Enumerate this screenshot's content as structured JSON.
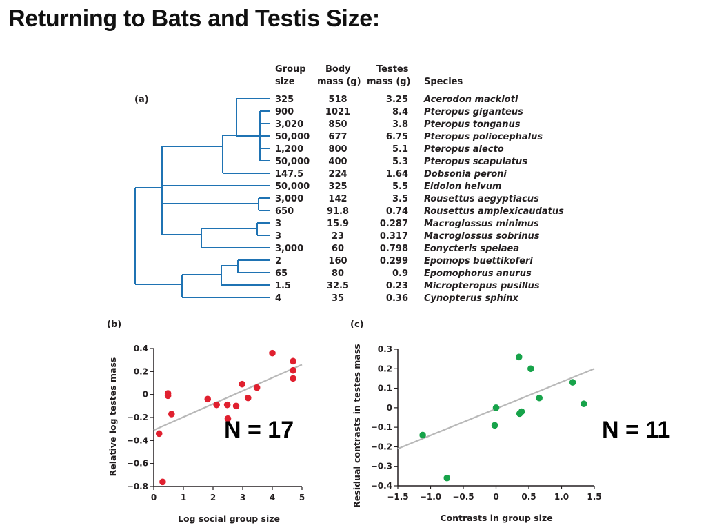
{
  "slide": {
    "title": "Returning to Bats and Testis Size:"
  },
  "table": {
    "panel_label": "(a)",
    "headers": {
      "group": [
        "Group",
        "size"
      ],
      "body": [
        "Body",
        "mass (g)"
      ],
      "testes": [
        "Testes",
        "mass (g)"
      ],
      "species": "Species"
    },
    "rows": [
      {
        "group": "325",
        "body": "518",
        "testes": "3.25",
        "species": "Acerodon mackloti"
      },
      {
        "group": "900",
        "body": "1021",
        "testes": "8.4",
        "species": "Pteropus giganteus"
      },
      {
        "group": "3,020",
        "body": "850",
        "testes": "3.8",
        "species": "Pteropus tonganus"
      },
      {
        "group": "50,000",
        "body": "677",
        "testes": "6.75",
        "species": "Pteropus poliocephalus"
      },
      {
        "group": "1,200",
        "body": "800",
        "testes": "5.1",
        "species": "Pteropus alecto"
      },
      {
        "group": "50,000",
        "body": "400",
        "testes": "5.3",
        "species": "Pteropus scapulatus"
      },
      {
        "group": "147.5",
        "body": "224",
        "testes": "1.64",
        "species": "Dobsonia peroni"
      },
      {
        "group": "50,000",
        "body": "325",
        "testes": "5.5",
        "species": "Eidolon helvum"
      },
      {
        "group": "3,000",
        "body": "142",
        "testes": "3.5",
        "species": "Rousettus aegyptiacus"
      },
      {
        "group": "650",
        "body": "91.8",
        "testes": "0.74",
        "species": "Rousettus amplexicaudatus"
      },
      {
        "group": "3",
        "body": "15.9",
        "testes": "0.287",
        "species": "Macroglossus minimus"
      },
      {
        "group": "3",
        "body": "23",
        "testes": "0.317",
        "species": "Macroglossus sobrinus"
      },
      {
        "group": "3,000",
        "body": "60",
        "testes": "0.798",
        "species": "Eonycteris spelaea"
      },
      {
        "group": "2",
        "body": "160",
        "testes": "0.299",
        "species": "Epomops buettikoferi"
      },
      {
        "group": "65",
        "body": "80",
        "testes": "0.9",
        "species": "Epomophorus anurus"
      },
      {
        "group": "1.5",
        "body": "32.5",
        "testes": "0.23",
        "species": "Micropteropus pusillus"
      },
      {
        "group": "4",
        "body": "35",
        "testes": "0.36",
        "species": "Cynopterus sphinx"
      }
    ]
  },
  "colors": {
    "tree": "#1f73b3",
    "red_points": "#e0202f",
    "green_points": "#17a34a",
    "fit_line": "#b8b8b8",
    "text": "#231f20"
  },
  "chart_data": [
    {
      "type": "scatter",
      "panel_label": "(b)",
      "annotation": "N = 17",
      "xlabel": "Log social group size",
      "ylabel": "Relative log testes mass",
      "xlim": [
        0,
        5
      ],
      "ylim": [
        -0.8,
        0.4
      ],
      "xticks": [
        0,
        1,
        2,
        3,
        4,
        5
      ],
      "xtick_labels": [
        "0",
        "1",
        "2",
        "3",
        "4",
        "5"
      ],
      "yticks": [
        0.4,
        0.2,
        0,
        -0.2,
        -0.4,
        -0.6,
        -0.8
      ],
      "ytick_labels": [
        "0.4",
        "0.2",
        "0",
        "−0.2",
        "−0.4",
        "−0.6",
        "−0.8"
      ],
      "point_color": "#e0202f",
      "points": [
        [
          0.18,
          -0.34
        ],
        [
          0.3,
          -0.76
        ],
        [
          0.48,
          0.01
        ],
        [
          0.48,
          -0.01
        ],
        [
          0.6,
          -0.17
        ],
        [
          1.82,
          -0.04
        ],
        [
          2.12,
          -0.09
        ],
        [
          2.48,
          -0.09
        ],
        [
          2.5,
          -0.21
        ],
        [
          2.78,
          -0.1
        ],
        [
          2.98,
          0.09
        ],
        [
          3.18,
          -0.03
        ],
        [
          3.48,
          0.06
        ],
        [
          4.0,
          0.36
        ],
        [
          4.7,
          0.29
        ],
        [
          4.7,
          0.21
        ],
        [
          4.7,
          0.14
        ]
      ],
      "fit_line": [
        [
          0.0,
          -0.31
        ],
        [
          5.0,
          0.26
        ]
      ]
    },
    {
      "type": "scatter",
      "panel_label": "(c)",
      "annotation": "N = 11",
      "xlabel": "Contrasts in group size",
      "ylabel": "Residual contrasts in testes mass",
      "xlim": [
        -1.5,
        1.5
      ],
      "ylim": [
        -0.4,
        0.3
      ],
      "xticks": [
        -1.5,
        -1.0,
        -0.5,
        0,
        0.5,
        1.0,
        1.5
      ],
      "xtick_labels": [
        "−1.5",
        "−1.0",
        "−0.5",
        "0",
        "0.5",
        "1.0",
        "1.5"
      ],
      "yticks": [
        0.3,
        0.2,
        0.1,
        0,
        -0.1,
        -0.2,
        -0.3,
        -0.4
      ],
      "ytick_labels": [
        "0.3",
        "0.2",
        "0.1",
        "0",
        "−0.1",
        "−0.2",
        "−0.3",
        "−0.4"
      ],
      "point_color": "#17a34a",
      "points": [
        [
          -1.12,
          -0.14
        ],
        [
          -0.75,
          -0.36
        ],
        [
          -0.02,
          -0.09
        ],
        [
          0.0,
          0.0
        ],
        [
          0.35,
          0.26
        ],
        [
          0.36,
          -0.03
        ],
        [
          0.39,
          -0.02
        ],
        [
          0.53,
          0.2
        ],
        [
          0.66,
          0.05
        ],
        [
          1.17,
          0.13
        ],
        [
          1.34,
          0.02
        ]
      ],
      "fit_line": [
        [
          -1.5,
          -0.21
        ],
        [
          1.5,
          0.2
        ]
      ]
    }
  ]
}
